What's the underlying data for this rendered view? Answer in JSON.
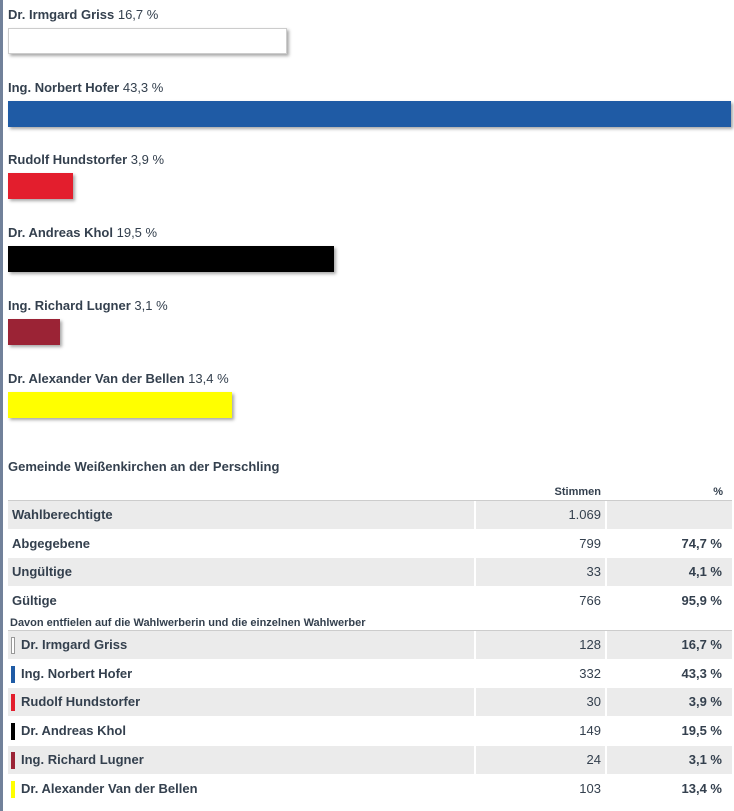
{
  "chart_data": {
    "type": "bar",
    "categories": [
      "Dr. Irmgard Griss",
      "Ing. Norbert Hofer",
      "Rudolf Hundstorfer",
      "Dr. Andreas Khol",
      "Ing. Richard Lugner",
      "Dr. Alexander Van der Bellen"
    ],
    "values": [
      16.7,
      43.3,
      3.9,
      19.5,
      3.1,
      13.4
    ],
    "value_labels": [
      "16,7 %",
      "43,3 %",
      "3,9 %",
      "19,5 %",
      "3,1 %",
      "13,4 %"
    ],
    "colors": [
      "#ffffff",
      "#1f5ba5",
      "#e31e2d",
      "#000000",
      "#9b2335",
      "#ffff00"
    ]
  },
  "table": {
    "title": "Gemeinde Weißenkirchen an der Perschling",
    "header": [
      "Stimmen",
      "%"
    ],
    "rows": [
      [
        "Wahlberechtigte",
        "1.069"
      ],
      [
        "Abgegebene",
        "799",
        "74,7 %"
      ],
      [
        "Ungültige",
        "33",
        "4,1 %"
      ],
      [
        "Gültige",
        "766",
        "95,9 %"
      ]
    ],
    "subheading": "Davon entfielen auf die Wahlwerberin und die einzelnen Wahlwerber",
    "candidate_rows": [
      [
        "Dr. Irmgard Griss",
        "128",
        "16,7 %"
      ],
      [
        "Ing. Norbert Hofer",
        "332",
        "43,3 %"
      ],
      [
        "Rudolf Hundstorfer",
        "30",
        "3,9 %"
      ],
      [
        "Dr. Andreas Khol",
        "149",
        "19,5 %"
      ],
      [
        "Ing. Richard Lugner",
        "24",
        "3,1 %"
      ],
      [
        "Dr. Alexander Van der Bellen",
        "103",
        "13,4 %"
      ]
    ]
  }
}
